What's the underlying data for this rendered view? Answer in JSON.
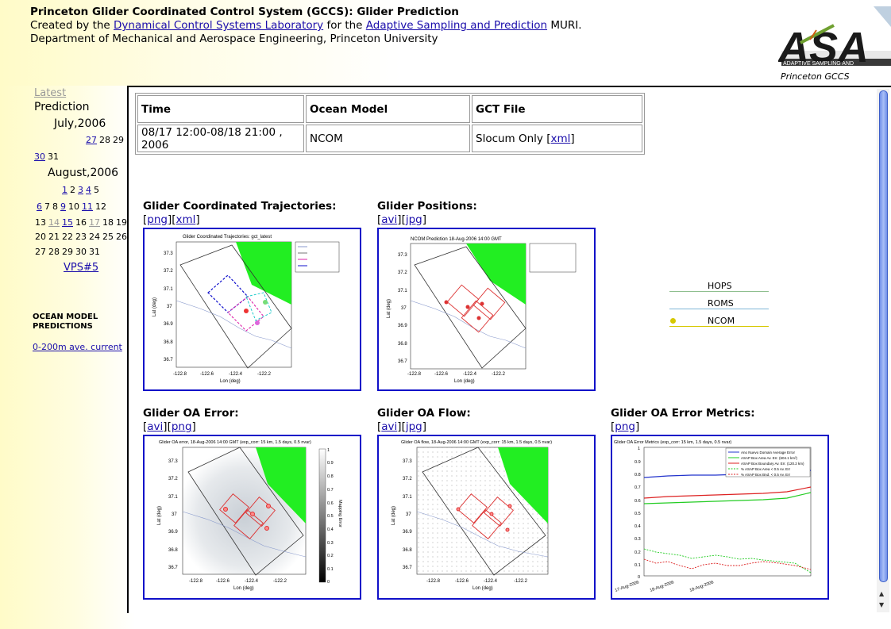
{
  "header": {
    "title": "Princeton Glider Coordinated Control System (GCCS): Glider Prediction",
    "created_prefix": "Created by the ",
    "lab_link": "Dynamical Control Systems Laboratory",
    "created_mid": " for the ",
    "asap_link": "Adaptive Sampling and Prediction",
    "created_suffix": " MURI.",
    "dept": "Department of Mechanical and Aerospace Engineering, Princeton University",
    "logo_caption": "Princeton GCCS",
    "logo_text": "ASA",
    "logo_subtext": "ADAPTIVE SAMPLING AND"
  },
  "sidebar": {
    "latest": "Latest",
    "prediction": "Prediction",
    "months": [
      {
        "name": "July,2006"
      },
      {
        "name": "August,2006"
      }
    ],
    "july_row1": [
      "27",
      "28",
      "29"
    ],
    "july_row2": [
      "30",
      "31"
    ],
    "aug_rows": [
      [
        "1",
        "2",
        "3",
        "4",
        "5"
      ],
      [
        "6",
        "7",
        "8",
        "9",
        "10",
        "11",
        "12"
      ],
      [
        "13",
        "14",
        "15",
        "16",
        "17",
        "18",
        "19"
      ],
      [
        "20",
        "21",
        "22",
        "23",
        "24",
        "25",
        "26"
      ],
      [
        "27",
        "28",
        "29",
        "30",
        "31"
      ]
    ],
    "vps": "VPS#5",
    "ocean_title_1": "OCEAN MODEL",
    "ocean_title_2": "PREDICTIONS",
    "ocean_link": "0-200m ave. current"
  },
  "table": {
    "headers": [
      "Time",
      "Ocean Model",
      "GCT File"
    ],
    "time": "08/17 12:00-08/18 21:00 , 2006",
    "model": "NCOM",
    "gct_prefix": "Slocum Only [",
    "gct_link": "xml",
    "gct_suffix": "]"
  },
  "sections": [
    {
      "title": "Glider Coordinated Trajectories:",
      "links": [
        "png",
        "xml"
      ],
      "fig_title": "Glider Coordinated Trajectories: gct_latest"
    },
    {
      "title": "Glider Positions:",
      "links": [
        "avi",
        "jpg"
      ],
      "fig_title": "NCOM Prediction  18-Aug-2006 14:00 GMT"
    },
    {
      "title": "Glider OA Error:",
      "links": [
        "avi",
        "png"
      ],
      "fig_title": "Glider OA error, 18-Aug-2006 14:00 GMT (exp_corr: 15 km, 1.5 days, 0.5 nvar)"
    },
    {
      "title": "Glider OA Flow:",
      "links": [
        "avi",
        "jpg"
      ],
      "fig_title": "Glider OA flow, 18-Aug-2006 14:00 GMT (exp_corr: 15 km, 1.5 days, 0.5 nvar)"
    },
    {
      "title": "Glider OA Error Metrics:",
      "links": [
        "png"
      ],
      "fig_title": "Glider OA Error Metrics (exp_corr: 15 km, 1.5 days, 0.5 nvar)"
    }
  ],
  "map_axes": {
    "yticks": [
      "37.3",
      "37.2",
      "37.1",
      "37",
      "36.9",
      "36.8",
      "36.7"
    ],
    "xticks": [
      "-122.8",
      "-122.6",
      "-122.4",
      "-122.2"
    ],
    "xlabel": "Lon (deg)",
    "ylabel": "Lat (deg)",
    "colorbar": [
      "1",
      "0.9",
      "0.8",
      "0.7",
      "0.6",
      "0.5",
      "0.4",
      "0.3",
      "0.2",
      "0.1",
      "0"
    ],
    "colorbar_label": "Mapping Error"
  },
  "metrics_axes": {
    "yticks": [
      "1",
      "0.9",
      "0.8",
      "0.7",
      "0.6",
      "0.5",
      "0.4",
      "0.3",
      "0.2",
      "0.1",
      "0"
    ],
    "xticks": [
      "17-Aug-2006",
      "18-Aug-2006",
      "18-Aug-2006"
    ],
    "legend": [
      "Ano Nuevo Domain Average Error",
      "ASAP Box Area Av. Err. (604.1 km²)",
      "ASAP Box Boundary Av. Err. (120.2 km)",
      "% ASAP Box Area < 0.5 Av. Err",
      "% ASAP Box Bnd. < 0.5 Av. Err"
    ]
  },
  "model_legend": [
    {
      "name": "HOPS",
      "color": "#8fbf8f"
    },
    {
      "name": "ROMS",
      "color": "#7fb6d6"
    },
    {
      "name": "NCOM",
      "color": "#d6c800"
    }
  ]
}
